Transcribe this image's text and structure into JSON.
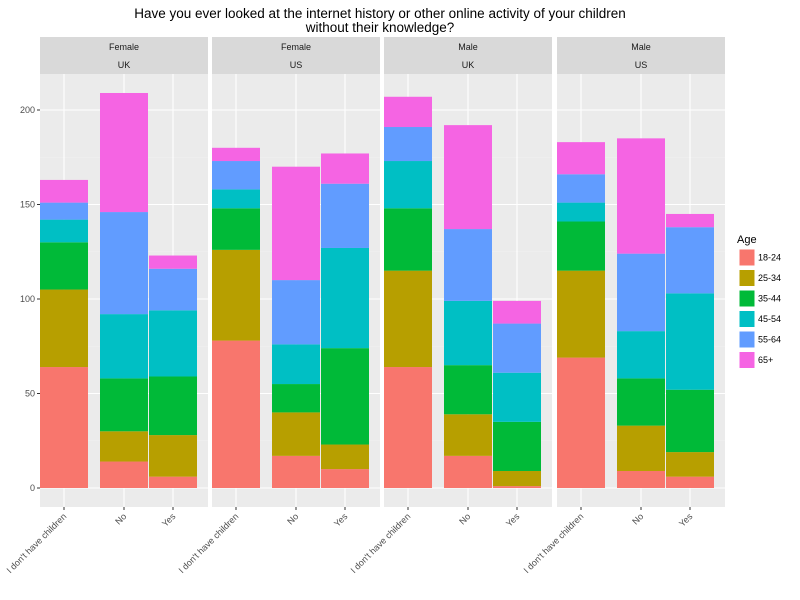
{
  "chart_data": {
    "type": "bar",
    "stacked": true,
    "title_line1": "Have you ever looked at the internet history or other online activity of your children",
    "title_line2": "without their knowledge?",
    "xlabel": "",
    "ylabel": "",
    "categories": [
      "I don't have children",
      "No",
      "Yes"
    ],
    "ylim": [
      0,
      215
    ],
    "yticks": [
      0,
      50,
      100,
      150,
      200
    ],
    "grid": true,
    "legend": {
      "title": "Age",
      "placement": "right",
      "entries": [
        "18-24",
        "25-34",
        "35-44",
        "45-54",
        "55-64",
        "65+"
      ],
      "colors": [
        "#F8766D",
        "#B79F00",
        "#00BA38",
        "#00BFC4",
        "#619CFF",
        "#F564E3"
      ]
    },
    "facets": [
      {
        "gender": "Female",
        "country": "UK",
        "series": [
          {
            "name": "18-24",
            "values": [
              64,
              14,
              6
            ]
          },
          {
            "name": "25-34",
            "values": [
              41,
              16,
              22
            ]
          },
          {
            "name": "35-44",
            "values": [
              25,
              28,
              31
            ]
          },
          {
            "name": "45-54",
            "values": [
              12,
              34,
              35
            ]
          },
          {
            "name": "55-64",
            "values": [
              9,
              54,
              22
            ]
          },
          {
            "name": "65+",
            "values": [
              12,
              63,
              7
            ]
          }
        ]
      },
      {
        "gender": "Female",
        "country": "US",
        "series": [
          {
            "name": "18-24",
            "values": [
              78,
              17,
              10
            ]
          },
          {
            "name": "25-34",
            "values": [
              48,
              23,
              13
            ]
          },
          {
            "name": "35-44",
            "values": [
              22,
              15,
              51
            ]
          },
          {
            "name": "45-54",
            "values": [
              10,
              21,
              53
            ]
          },
          {
            "name": "55-64",
            "values": [
              15,
              34,
              34
            ]
          },
          {
            "name": "65+",
            "values": [
              7,
              60,
              16
            ]
          }
        ]
      },
      {
        "gender": "Male",
        "country": "UK",
        "series": [
          {
            "name": "18-24",
            "values": [
              64,
              17,
              1
            ]
          },
          {
            "name": "25-34",
            "values": [
              51,
              22,
              8
            ]
          },
          {
            "name": "35-44",
            "values": [
              33,
              26,
              26
            ]
          },
          {
            "name": "45-54",
            "values": [
              25,
              34,
              26
            ]
          },
          {
            "name": "55-64",
            "values": [
              18,
              38,
              26
            ]
          },
          {
            "name": "65+",
            "values": [
              16,
              55,
              12
            ]
          }
        ]
      },
      {
        "gender": "Male",
        "country": "US",
        "series": [
          {
            "name": "18-24",
            "values": [
              69,
              9,
              6
            ]
          },
          {
            "name": "25-34",
            "values": [
              46,
              24,
              13
            ]
          },
          {
            "name": "35-44",
            "values": [
              26,
              25,
              33
            ]
          },
          {
            "name": "45-54",
            "values": [
              10,
              25,
              51
            ]
          },
          {
            "name": "55-64",
            "values": [
              15,
              41,
              35
            ]
          },
          {
            "name": "65+",
            "values": [
              17,
              61,
              7
            ]
          }
        ]
      }
    ]
  }
}
